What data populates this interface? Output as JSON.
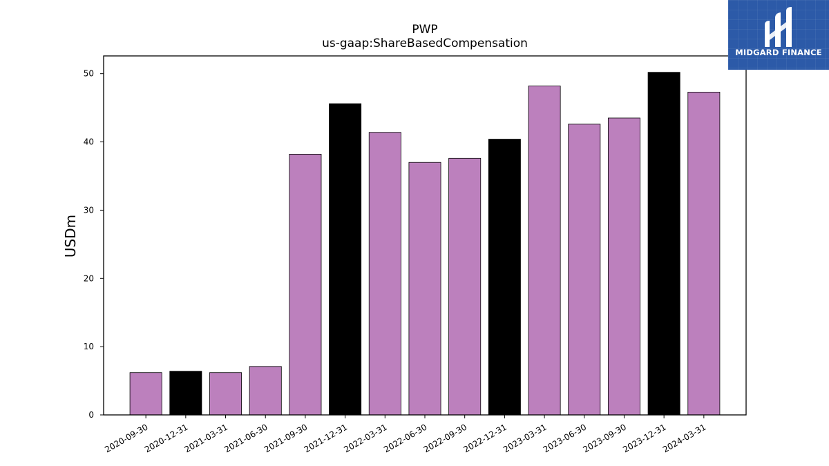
{
  "chart_data": {
    "type": "bar",
    "title": "PWP",
    "subtitle": "us-gaap:ShareBasedCompensation",
    "xlabel": "",
    "ylabel": "USDm",
    "ylim": [
      0,
      52.6
    ],
    "yticks": [
      0,
      10,
      20,
      30,
      40,
      50
    ],
    "categories": [
      "2020-09-30",
      "2020-12-31",
      "2021-03-31",
      "2021-06-30",
      "2021-09-30",
      "2021-12-31",
      "2022-03-31",
      "2022-06-30",
      "2022-09-30",
      "2022-12-31",
      "2023-03-31",
      "2023-06-30",
      "2023-09-30",
      "2023-12-31",
      "2024-03-31"
    ],
    "values": [
      6.2,
      6.4,
      6.2,
      7.1,
      38.2,
      45.6,
      41.4,
      37.0,
      37.6,
      40.4,
      48.2,
      42.6,
      43.5,
      50.2,
      47.3
    ],
    "bar_colors": [
      "#bc80bd",
      "#000000",
      "#bc80bd",
      "#bc80bd",
      "#bc80bd",
      "#000000",
      "#bc80bd",
      "#bc80bd",
      "#bc80bd",
      "#000000",
      "#bc80bd",
      "#bc80bd",
      "#bc80bd",
      "#000000",
      "#bc80bd"
    ],
    "grid": false
  },
  "logo": {
    "text": "MIDGARD FINANCE",
    "background": "#2c5aa8"
  }
}
